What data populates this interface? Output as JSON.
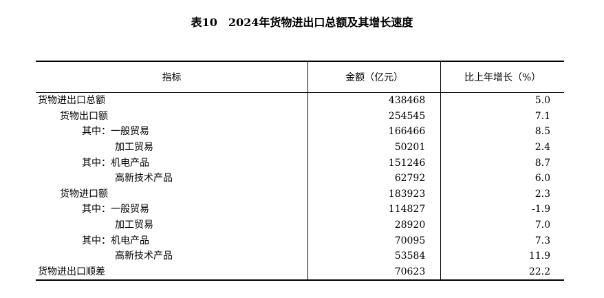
{
  "title": {
    "number": "表10",
    "text": "2024年货物进出口总额及其增长速度"
  },
  "table": {
    "headers": [
      "指标",
      "金额（亿元）",
      "比上年增长（%）"
    ],
    "rows": [
      {
        "label": "货物进出口总额",
        "level": 0,
        "amount": "438468",
        "growth": "5.0"
      },
      {
        "label": "货物出口额",
        "level": 1,
        "amount": "254545",
        "growth": "7.1"
      },
      {
        "label": "其中：一般贸易",
        "level": 2,
        "amount": "166466",
        "growth": "8.5"
      },
      {
        "label": "加工贸易",
        "level": 3,
        "amount": "50201",
        "growth": "2.4"
      },
      {
        "label": "其中：机电产品",
        "level": 2,
        "amount": "151246",
        "growth": "8.7"
      },
      {
        "label": "高新技术产品",
        "level": 3,
        "amount": "62792",
        "growth": "6.0"
      },
      {
        "label": "货物进口额",
        "level": 1,
        "amount": "183923",
        "growth": "2.3"
      },
      {
        "label": "其中：一般贸易",
        "level": 2,
        "amount": "114827",
        "growth": "-1.9"
      },
      {
        "label": "加工贸易",
        "level": 3,
        "amount": "28920",
        "growth": "7.0"
      },
      {
        "label": "其中：机电产品",
        "level": 2,
        "amount": "70095",
        "growth": "7.3"
      },
      {
        "label": "高新技术产品",
        "level": 3,
        "amount": "53584",
        "growth": "11.9"
      },
      {
        "label": "货物进出口顺差",
        "level": 0,
        "amount": "70623",
        "growth": "22.2"
      }
    ]
  }
}
